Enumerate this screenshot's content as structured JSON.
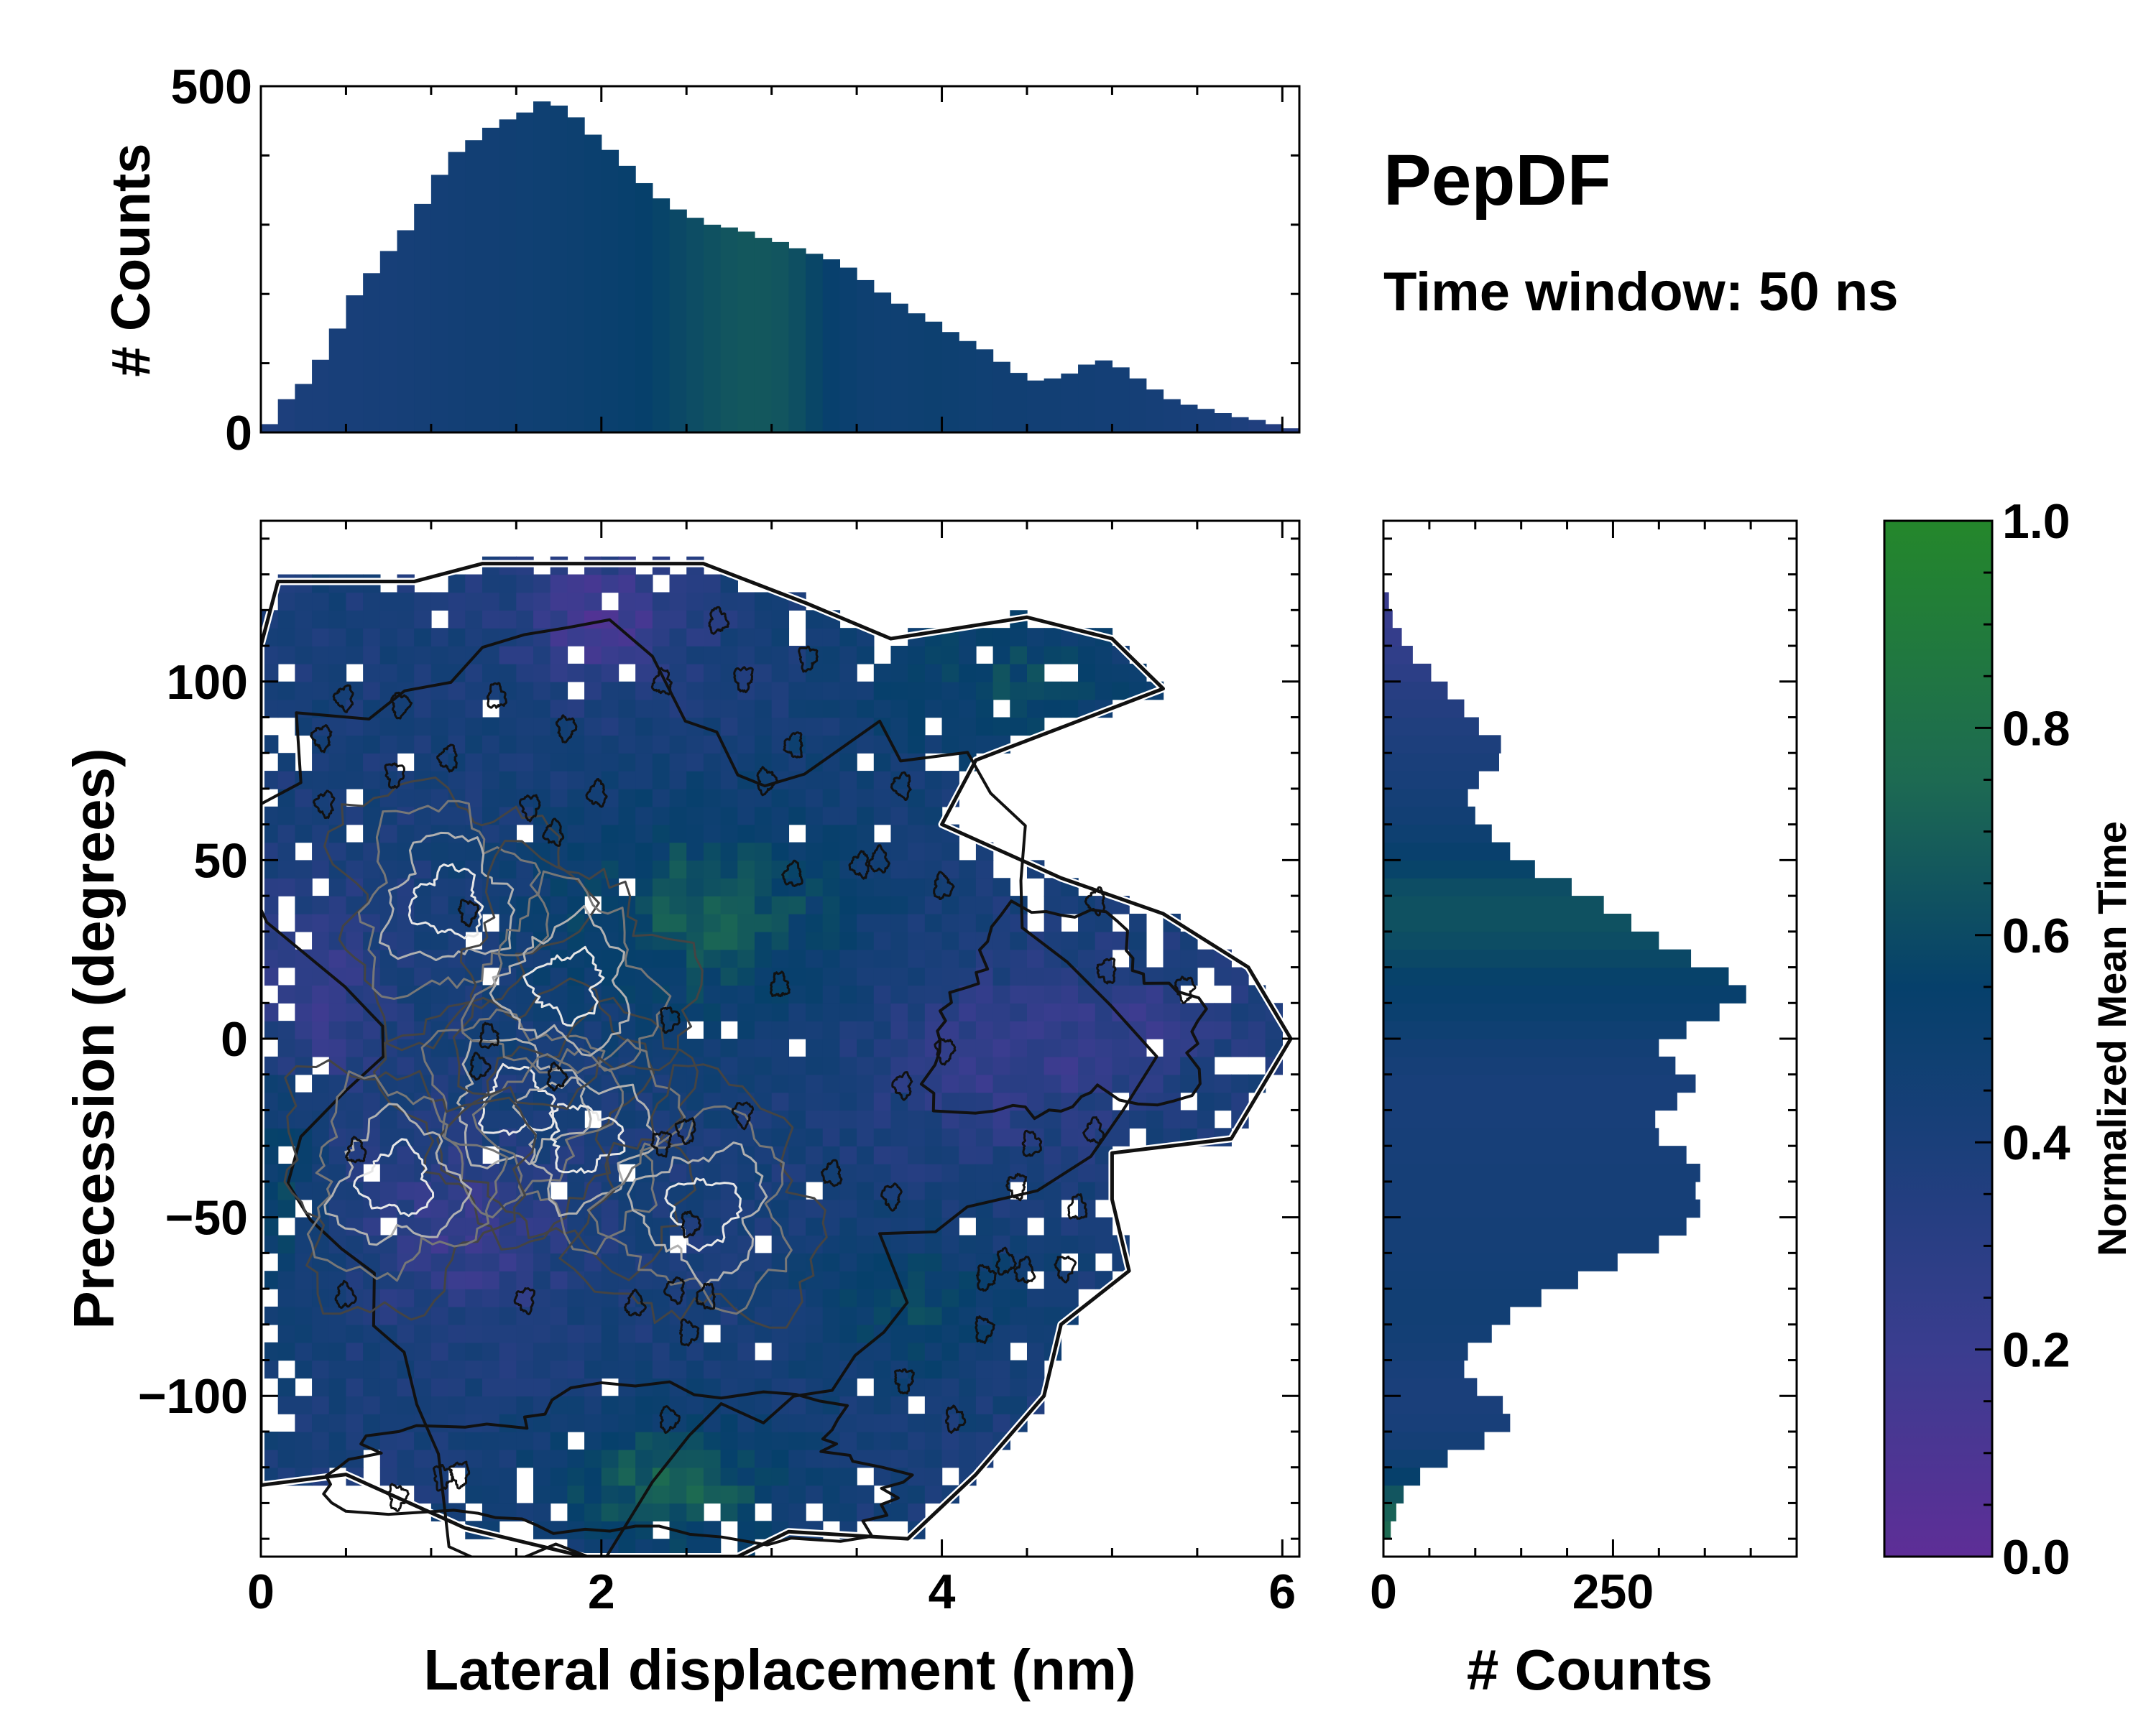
{
  "page": {
    "title": "PepDF",
    "subtitle": "Time window: 50 ns"
  },
  "colors": {
    "colormap": [
      "#5e2e97",
      "#3a3d8f",
      "#1a3f7a",
      "#06406b",
      "#1d6a52",
      "#24872b"
    ],
    "ink": "#000000",
    "contour_black": "#111111",
    "contour_dark_gray": "#444444",
    "contour_gray": "#777777",
    "contour_light_gray": "#b0b0b0",
    "contour_white": "#e6e6e6"
  },
  "chart_data": [
    {
      "type": "bar",
      "name": "top-marginal-histogram",
      "ylabel": "# Counts",
      "xlim": [
        0,
        6.1
      ],
      "ylim": [
        0,
        500
      ],
      "yticks": [
        0,
        500
      ],
      "x_start": 0.0,
      "bin_width": 0.1,
      "values": [
        12,
        48,
        70,
        105,
        150,
        198,
        230,
        262,
        292,
        330,
        372,
        405,
        422,
        440,
        452,
        462,
        478,
        472,
        455,
        430,
        408,
        385,
        360,
        338,
        322,
        310,
        300,
        296,
        290,
        281,
        275,
        266,
        258,
        250,
        238,
        220,
        202,
        186,
        172,
        160,
        145,
        132,
        120,
        102,
        86,
        75,
        78,
        85,
        98,
        104,
        94,
        78,
        62,
        48,
        40,
        34,
        28,
        22,
        18,
        12,
        6
      ],
      "colors_normalized_mean_time": [
        0.36,
        0.38,
        0.4,
        0.4,
        0.42,
        0.42,
        0.43,
        0.43,
        0.44,
        0.45,
        0.46,
        0.47,
        0.48,
        0.48,
        0.49,
        0.5,
        0.51,
        0.52,
        0.53,
        0.55,
        0.56,
        0.58,
        0.6,
        0.62,
        0.64,
        0.66,
        0.68,
        0.7,
        0.71,
        0.71,
        0.7,
        0.67,
        0.63,
        0.58,
        0.55,
        0.52,
        0.51,
        0.51,
        0.52,
        0.53,
        0.52,
        0.51,
        0.5,
        0.49,
        0.49,
        0.48,
        0.48,
        0.47,
        0.47,
        0.46,
        0.46,
        0.45,
        0.44,
        0.43,
        0.42,
        0.41,
        0.4,
        0.38,
        0.36,
        0.34,
        0.32
      ]
    },
    {
      "type": "heatmap",
      "name": "main-2d-histogram",
      "xlabel": "Lateral displacement (nm)",
      "ylabel": "Precession (degrees)",
      "xlim": [
        0,
        6.1
      ],
      "ylim": [
        -145,
        145
      ],
      "xticks": [
        0,
        2,
        4,
        6
      ],
      "yticks": [
        -100,
        -50,
        0,
        50,
        100
      ],
      "ytick_labels": [
        "−100",
        "−50",
        "0",
        "50",
        "100"
      ],
      "x_bin_width": 0.1,
      "y_bin_width": 5,
      "color_variable": "Normalized Mean Time",
      "contours": "density contours at increasing levels (black outermost, shading to white at peaks)",
      "density_peaks": [
        {
          "x": 1.1,
          "y": 38
        },
        {
          "x": 1.5,
          "y": -18
        },
        {
          "x": 1.9,
          "y": -28
        },
        {
          "x": 2.6,
          "y": -48
        },
        {
          "x": 1.8,
          "y": 15
        },
        {
          "x": 0.8,
          "y": -40
        }
      ],
      "occupied_region_outline": [
        [
          0.1,
          128
        ],
        [
          0.9,
          128
        ],
        [
          1.3,
          133
        ],
        [
          2.6,
          133
        ],
        [
          3.2,
          122
        ],
        [
          3.7,
          112
        ],
        [
          4.5,
          118
        ],
        [
          5.0,
          112
        ],
        [
          5.3,
          98
        ],
        [
          4.2,
          78
        ],
        [
          4.0,
          60
        ],
        [
          4.7,
          45
        ],
        [
          5.3,
          35
        ],
        [
          5.8,
          20
        ],
        [
          6.05,
          0
        ],
        [
          5.7,
          -28
        ],
        [
          5.0,
          -32
        ],
        [
          5.0,
          -45
        ],
        [
          5.1,
          -65
        ],
        [
          4.7,
          -80
        ],
        [
          4.6,
          -100
        ],
        [
          4.2,
          -122
        ],
        [
          3.8,
          -140
        ],
        [
          3.1,
          -138
        ],
        [
          2.8,
          -145
        ],
        [
          1.9,
          -145
        ],
        [
          1.2,
          -137
        ],
        [
          0.5,
          -122
        ],
        [
          0.0,
          -125
        ],
        [
          0.0,
          110
        ]
      ]
    },
    {
      "type": "bar",
      "orientation": "horizontal",
      "name": "right-marginal-histogram",
      "xlabel": "# Counts",
      "xlim": [
        0,
        450
      ],
      "xticks": [
        0,
        250
      ],
      "y_start": -140,
      "bin_width": 5,
      "values": [
        8,
        14,
        22,
        40,
        70,
        110,
        138,
        130,
        102,
        88,
        92,
        118,
        138,
        172,
        212,
        255,
        300,
        330,
        345,
        340,
        345,
        330,
        300,
        296,
        320,
        340,
        318,
        300,
        330,
        366,
        395,
        376,
        335,
        300,
        270,
        240,
        205,
        165,
        138,
        118,
        100,
        92,
        104,
        126,
        128,
        104,
        88,
        70,
        52,
        32,
        20,
        10,
        6
      ],
      "colors_normalized_mean_time": [
        0.8,
        0.76,
        0.7,
        0.6,
        0.5,
        0.45,
        0.42,
        0.4,
        0.4,
        0.42,
        0.45,
        0.47,
        0.48,
        0.48,
        0.47,
        0.46,
        0.45,
        0.45,
        0.44,
        0.44,
        0.44,
        0.43,
        0.43,
        0.42,
        0.42,
        0.42,
        0.44,
        0.47,
        0.51,
        0.55,
        0.58,
        0.61,
        0.64,
        0.66,
        0.68,
        0.68,
        0.66,
        0.62,
        0.57,
        0.52,
        0.48,
        0.45,
        0.42,
        0.4,
        0.38,
        0.36,
        0.34,
        0.32,
        0.29,
        0.26,
        0.24,
        0.22,
        0.2
      ]
    },
    {
      "type": "colorbar",
      "name": "normalized-mean-time-colorbar",
      "label": "Normalized Mean Time",
      "range": [
        0,
        1
      ],
      "ticks": [
        "0.0",
        "0.2",
        "0.4",
        "0.6",
        "0.8",
        "1.0"
      ]
    }
  ]
}
